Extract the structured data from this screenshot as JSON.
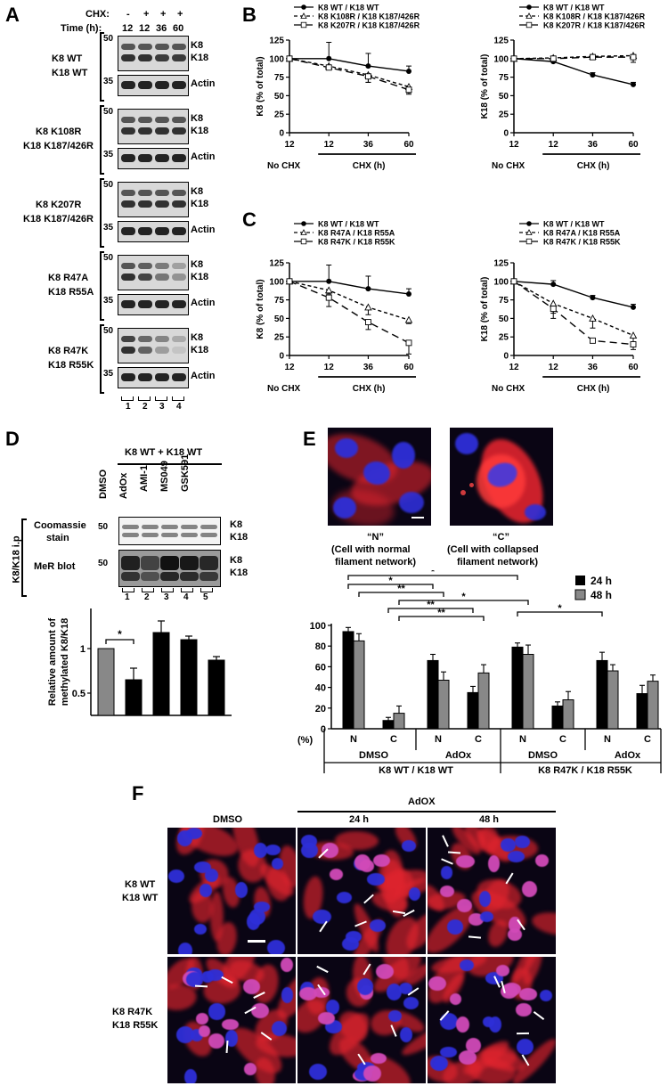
{
  "panelA": {
    "label": "A",
    "header": {
      "chx_label": "CHX:",
      "chx_values": [
        "-",
        "+",
        "+",
        "+"
      ],
      "time_label": "Time (h):",
      "time_values": [
        "12",
        "12",
        "36",
        "60"
      ]
    },
    "groups": [
      {
        "line1": "K8 WT",
        "line2": "K18 WT"
      },
      {
        "line1": "K8 K108R",
        "line2": "K18 K187/426R"
      },
      {
        "line1": "K8 K207R",
        "line2": "K18 K187/426R"
      },
      {
        "line1": "K8 R47A",
        "line2": "K18 R55A"
      },
      {
        "line1": "K8 R47K",
        "line2": "K18 R55K"
      }
    ],
    "mw_top": "50",
    "mw_bottom": "35",
    "band_k8": "K8",
    "band_k18": "K18",
    "band_actin": "Actin",
    "lanes": [
      "1",
      "2",
      "3",
      "4"
    ]
  },
  "panelB": {
    "label": "B"
  },
  "panelC": {
    "label": "C"
  },
  "linecommon": {
    "yticks": [
      "0",
      "25",
      "50",
      "75",
      "100",
      "125"
    ],
    "xticks": [
      "12",
      "12",
      "36",
      "60"
    ],
    "nochx": "No CHX",
    "chx": "CHX (h)",
    "ylabel_k8": "K8 (% of total)",
    "ylabel_k18": "K18 (% of total)"
  },
  "chart_data": [
    {
      "type": "line",
      "panel": "B-left",
      "x": [
        "12 (No CHX)",
        "12",
        "36",
        "60"
      ],
      "ylabel": "K8 (% of total)",
      "xlabel": "CHX (h)",
      "ylim": [
        0,
        125
      ],
      "series": [
        {
          "name": "K8 WT / K18 WT",
          "values": [
            100,
            100,
            90,
            83
          ],
          "errors": [
            0,
            22,
            17,
            7
          ]
        },
        {
          "name": "K8 K108R / K18 K187/426R",
          "values": [
            100,
            90,
            78,
            62
          ],
          "errors": [
            0,
            3,
            10,
            8
          ]
        },
        {
          "name": "K8 K207R / K18 K187/426R",
          "values": [
            100,
            88,
            76,
            58
          ],
          "errors": [
            0,
            3,
            8,
            6
          ]
        }
      ]
    },
    {
      "type": "line",
      "panel": "B-right",
      "x": [
        "12 (No CHX)",
        "12",
        "36",
        "60"
      ],
      "ylabel": "K18 (% of total)",
      "xlabel": "CHX (h)",
      "ylim": [
        0,
        125
      ],
      "series": [
        {
          "name": "K8 WT / K18 WT",
          "values": [
            100,
            96,
            78,
            65
          ],
          "errors": [
            0,
            3,
            3,
            3
          ]
        },
        {
          "name": "K8 K108R / K18 K187/426R",
          "values": [
            100,
            101,
            103,
            104
          ],
          "errors": [
            0,
            2,
            2,
            9
          ]
        },
        {
          "name": "K8 K207R / K18 K187/426R",
          "values": [
            100,
            100,
            102,
            102
          ],
          "errors": [
            0,
            2,
            2,
            3
          ]
        }
      ]
    },
    {
      "type": "line",
      "panel": "C-left",
      "x": [
        "12 (No CHX)",
        "12",
        "36",
        "60"
      ],
      "ylabel": "K8 (% of total)",
      "xlabel": "CHX (h)",
      "ylim": [
        0,
        125
      ],
      "series": [
        {
          "name": "K8 WT / K18 WT",
          "values": [
            100,
            100,
            90,
            83
          ],
          "errors": [
            0,
            22,
            17,
            7
          ]
        },
        {
          "name": "K8 R47A / K18 R55A",
          "values": [
            100,
            88,
            65,
            48
          ],
          "errors": [
            0,
            5,
            10,
            5
          ]
        },
        {
          "name": "K8 R47K / K18 R55K",
          "values": [
            100,
            78,
            45,
            17
          ],
          "errors": [
            0,
            12,
            10,
            15
          ]
        }
      ]
    },
    {
      "type": "line",
      "panel": "C-right",
      "x": [
        "12 (No CHX)",
        "12",
        "36",
        "60"
      ],
      "ylabel": "K18 (% of total)",
      "xlabel": "CHX (h)",
      "ylim": [
        0,
        125
      ],
      "series": [
        {
          "name": "K8 WT / K18 WT",
          "values": [
            100,
            96,
            78,
            65
          ],
          "errors": [
            0,
            5,
            3,
            4
          ]
        },
        {
          "name": "K8 R47A / K18 R55A",
          "values": [
            100,
            70,
            50,
            27
          ],
          "errors": [
            0,
            13,
            13,
            13
          ]
        },
        {
          "name": "K8 R47K / K18 R55K",
          "values": [
            100,
            63,
            20,
            15
          ],
          "errors": [
            0,
            13,
            3,
            7
          ]
        }
      ]
    },
    {
      "type": "bar",
      "panel": "D",
      "categories": [
        "1",
        "2",
        "3",
        "4",
        "5"
      ],
      "values": [
        1.0,
        0.65,
        1.18,
        1.1,
        0.87
      ],
      "errors": [
        0,
        0.13,
        0.13,
        0.04,
        0.04
      ],
      "ylabel": "Relative amount of methylated K8/K18",
      "ylim": [
        0.25,
        1.45
      ],
      "yticks": [
        "0.5",
        "1"
      ],
      "significance": [
        {
          "from": "1",
          "to": "2",
          "label": "*"
        }
      ]
    },
    {
      "type": "bar",
      "panel": "E",
      "groups": [
        {
          "genotype": "K8 WT / K18 WT",
          "treatment": "DMSO",
          "categories": [
            "N",
            "C"
          ]
        },
        {
          "genotype": "K8 WT / K18 WT",
          "treatment": "AdOx",
          "categories": [
            "N",
            "C"
          ]
        },
        {
          "genotype": "K8 R47K / K18 R55K",
          "treatment": "DMSO",
          "categories": [
            "N",
            "C"
          ]
        },
        {
          "genotype": "K8 R47K / K18 R55K",
          "treatment": "AdOx",
          "categories": [
            "N",
            "C"
          ]
        }
      ],
      "series": [
        {
          "name": "24 h",
          "color": "#000000",
          "values": [
            94,
            8,
            66,
            35,
            79,
            22,
            66,
            34
          ],
          "errors": [
            4,
            3,
            6,
            6,
            4,
            4,
            8,
            8
          ]
        },
        {
          "name": "48 h",
          "color": "#888888",
          "values": [
            85,
            15,
            47,
            54,
            72,
            28,
            56,
            46
          ],
          "errors": [
            7,
            7,
            8,
            8,
            9,
            8,
            6,
            6
          ]
        }
      ],
      "ylabel": "(%)",
      "ylim": [
        0,
        100
      ],
      "yticks": [
        "0",
        "20",
        "40",
        "60",
        "80",
        "100"
      ]
    }
  ],
  "panelD": {
    "label": "D",
    "title": "K8 WT + K18 WT",
    "treatments": [
      "DMSO",
      "AdOx",
      "AMI-1",
      "MS049",
      "GSK591"
    ],
    "side": "K8/K18 i.p",
    "row1_a": "Coomassie",
    "row1_b": "stain",
    "row2": "MeR blot",
    "mw": "50",
    "band_k8": "K8",
    "band_k18": "K18",
    "lanes": [
      "1",
      "2",
      "3",
      "4",
      "5"
    ],
    "ylabel1": "Relative amount of",
    "ylabel2": "methylated K8/K18",
    "yticks": [
      "0.5",
      "1"
    ],
    "star": "*"
  },
  "panelE": {
    "label": "E",
    "img1_q": "“N”",
    "img1_d1": "(Cell with normal",
    "img1_d2": "filament network)",
    "img2_q": "“C”",
    "img2_d1": "(Cell with collapsed",
    "img2_d2": "filament network)",
    "legend_24": "24 h",
    "legend_48": "48 h",
    "yunit": "(%)",
    "yticks": [
      "0",
      "20",
      "40",
      "60",
      "80",
      "100"
    ],
    "cats": [
      "N",
      "C",
      "N",
      "C",
      "N",
      "C",
      "N",
      "C"
    ],
    "treat": [
      "DMSO",
      "AdOx",
      "DMSO",
      "AdOx"
    ],
    "geno": [
      "K8 WT / K18 WT",
      "K8 R47K / K18 R55K"
    ],
    "stars": [
      "*",
      "*",
      "**",
      "*",
      "**",
      "**",
      "*"
    ]
  },
  "panelF": {
    "label": "F",
    "adox": "AdOX",
    "col1": "DMSO",
    "col2": "24 h",
    "col3": "48 h",
    "row1a": "K8 WT",
    "row1b": "K18 WT",
    "row2a": "K8 R47K",
    "row2b": "K18 R55K"
  },
  "colors": {
    "fluor_bg": "#0a0514",
    "keratin_red": "#e0242e",
    "nucleus_blue": "#2e2fd8",
    "bar_black": "#000000",
    "bar_gray": "#888888"
  }
}
